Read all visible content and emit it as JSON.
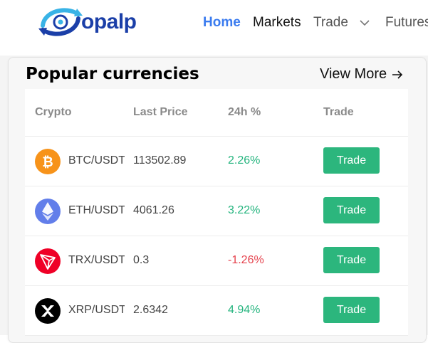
{
  "header": {
    "logo_text": "opalp",
    "nav": [
      {
        "label": "Home",
        "active": true
      },
      {
        "label": "Markets"
      },
      {
        "label": "Trade"
      },
      {
        "label": "Futures"
      }
    ],
    "trade_dropdown_icon": "chevron-down-icon"
  },
  "section": {
    "title": "Popular currencies",
    "view_more_label": "View More",
    "view_more_icon": "arrow-right-icon"
  },
  "table": {
    "columns": [
      "Crypto",
      "Last Price",
      "24h %",
      "Trade"
    ],
    "rows": [
      {
        "icon": "bitcoin-icon",
        "icon_color": "#f7931a",
        "pair": "BTC/USDT",
        "price": "113502.89",
        "change": "2.26%",
        "trend": "up",
        "action": "Trade"
      },
      {
        "icon": "ethereum-icon",
        "icon_color": "#627eea",
        "pair": "ETH/USDT",
        "price": "4061.26",
        "change": "3.22%",
        "trend": "up",
        "action": "Trade"
      },
      {
        "icon": "tron-icon",
        "icon_color": "#ef0027",
        "pair": "TRX/USDT",
        "price": "0.3",
        "change": "-1.26%",
        "trend": "down",
        "action": "Trade"
      },
      {
        "icon": "xrp-icon",
        "icon_color": "#000000",
        "pair": "XRP/USDT",
        "price": "2.6342",
        "change": "4.94%",
        "trend": "up",
        "action": "Trade"
      }
    ]
  },
  "colors": {
    "accent": "#3a7bef",
    "trade_button": "#2cb67d",
    "positive": "#24b47e",
    "negative": "#e5424d",
    "brand": "#1b3fa8"
  }
}
